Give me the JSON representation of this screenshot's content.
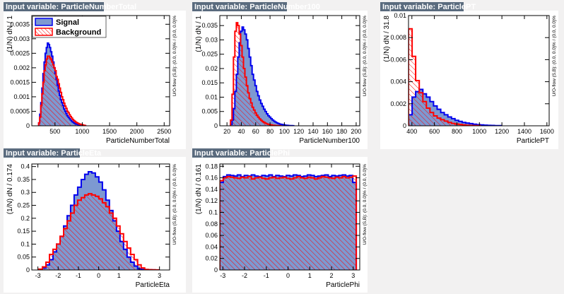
{
  "colors": {
    "background": "#f2f1f1",
    "frame": "#ffffff",
    "title_box": "#5a6b7e",
    "signal_fill": "#7d99d1",
    "signal_line": "#0000ee",
    "background_line": "#ff0000"
  },
  "legend": {
    "signal": "Signal",
    "background": "Background"
  },
  "overflow_label": "U/O-flow (S,B): (0.0, 0.0)% / (0.0, 0.0)%",
  "chart_data": [
    {
      "type": "histogram",
      "title": "Input variable: ParticleNumberTotal",
      "xlabel": "ParticleNumberTotal",
      "ylabel": "(1/N)  dN / 1",
      "xlim": [
        75,
        2600
      ],
      "ylim": [
        0,
        0.0038
      ],
      "xticks": [
        500,
        1000,
        1500,
        2000,
        2500
      ],
      "xtick_labels": [
        "500",
        "1000",
        "1500",
        "2000",
        "2500"
      ],
      "yticks": [
        0,
        0.0005,
        0.001,
        0.0015,
        0.002,
        0.0025,
        0.003,
        0.0035
      ],
      "ytick_labels": [
        "0",
        "0.0005",
        "0.001",
        "0.0015",
        "0.002",
        "0.0025",
        "0.003",
        "0.0035"
      ],
      "legend": "top-left",
      "bins_start": 200,
      "bin_width": 20,
      "series": [
        {
          "name": "Signal",
          "values": [
            0.0001,
            0.0004,
            0.0008,
            0.0013,
            0.0018,
            0.0022,
            0.0025,
            0.0027,
            0.00285,
            0.0028,
            0.0027,
            0.00255,
            0.0024,
            0.0022,
            0.002,
            0.0018,
            0.0016,
            0.0014,
            0.0012,
            0.00105,
            0.0009,
            0.0008,
            0.0007,
            0.00058,
            0.0005,
            0.00042,
            0.00035,
            0.0003,
            0.00025,
            0.0002,
            0.00016,
            0.00013,
            0.0001,
            8e-05,
            6e-05,
            5e-05,
            4e-05,
            3e-05,
            2e-05,
            1.5e-05,
            1e-05,
            1e-05,
            5e-06
          ]
        },
        {
          "name": "Background",
          "values": [
            0.0001,
            0.0003,
            0.0007,
            0.0011,
            0.0015,
            0.0019,
            0.0021,
            0.0023,
            0.0024,
            0.0024,
            0.00235,
            0.0023,
            0.0022,
            0.0021,
            0.002,
            0.0019,
            0.0017,
            0.0016,
            0.00145,
            0.0013,
            0.00115,
            0.001,
            0.0009,
            0.00078,
            0.00068,
            0.0006,
            0.0005,
            0.00045,
            0.00038,
            0.00032,
            0.00027,
            0.00022,
            0.00018,
            0.00015,
            0.00012,
            0.0001,
            8e-05,
            6e-05,
            5e-05,
            4e-05,
            3e-05,
            2e-05,
            1e-05
          ]
        }
      ]
    },
    {
      "type": "histogram",
      "title": "Input variable: ParticleNumber100",
      "xlabel": "ParticleNumber100",
      "ylabel": "(1/N)  dN / 1",
      "xlim": [
        10,
        205
      ],
      "ylim": [
        0,
        0.0385
      ],
      "xticks": [
        20,
        40,
        60,
        80,
        100,
        120,
        140,
        160,
        180,
        200
      ],
      "xtick_labels": [
        "20",
        "40",
        "60",
        "80",
        "100",
        "120",
        "140",
        "160",
        "180",
        "200"
      ],
      "yticks": [
        0,
        0.005,
        0.01,
        0.015,
        0.02,
        0.025,
        0.03,
        0.035
      ],
      "ytick_labels": [
        "0",
        "0.005",
        "0.01",
        "0.015",
        "0.02",
        "0.025",
        "0.03",
        "0.035"
      ],
      "bins_start": 25,
      "bin_width": 2,
      "series": [
        {
          "name": "Signal",
          "values": [
            0.0005,
            0.002,
            0.006,
            0.012,
            0.018,
            0.024,
            0.029,
            0.033,
            0.0345,
            0.0335,
            0.032,
            0.03,
            0.027,
            0.024,
            0.021,
            0.018,
            0.016,
            0.014,
            0.012,
            0.0105,
            0.009,
            0.0078,
            0.0068,
            0.0058,
            0.005,
            0.0042,
            0.0035,
            0.003,
            0.0025,
            0.002,
            0.0016,
            0.0013,
            0.001,
            0.0008,
            0.0006,
            0.0005,
            0.0004,
            0.0003,
            0.0002,
            0.00015,
            0.0001,
            8e-05,
            5e-05,
            3e-05
          ]
        },
        {
          "name": "Background",
          "values": [
            0.002,
            0.011,
            0.024,
            0.033,
            0.036,
            0.035,
            0.032,
            0.028,
            0.024,
            0.02,
            0.017,
            0.014,
            0.0115,
            0.0095,
            0.008,
            0.0065,
            0.0055,
            0.0045,
            0.0037,
            0.003,
            0.0024,
            0.0019,
            0.0015,
            0.0012,
            0.0009,
            0.0007,
            0.0005,
            0.0004,
            0.0003,
            0.0002,
            0.00015,
            0.0001,
            8e-05,
            5e-05,
            3e-05
          ]
        }
      ]
    },
    {
      "type": "histogram",
      "title": "Input variable: ParticlePT",
      "xlabel": "ParticlePT",
      "ylabel": "(1/N)  dN / 31.8",
      "xlim": [
        370,
        1620
      ],
      "ylim": [
        0,
        0.01
      ],
      "xticks": [
        400,
        600,
        800,
        1000,
        1200,
        1400,
        1600
      ],
      "xtick_labels": [
        "400",
        "600",
        "800",
        "1000",
        "1200",
        "1400",
        "1600"
      ],
      "yticks": [
        0,
        0.002,
        0.004,
        0.006,
        0.008,
        0.01
      ],
      "ytick_labels": [
        "0",
        "0.002",
        "0.004",
        "0.006",
        "0.008",
        "0.01"
      ],
      "bins_start": 370,
      "bin_width": 31.8,
      "series": [
        {
          "name": "Signal",
          "values": [
            0.001,
            0.0026,
            0.0031,
            0.0033,
            0.0029,
            0.0026,
            0.0022,
            0.0018,
            0.0015,
            0.0012,
            0.001,
            0.0008,
            0.00065,
            0.0005,
            0.0004,
            0.0003,
            0.00025,
            0.0002,
            0.00015,
            0.0001,
            8e-05,
            6e-05,
            4e-05,
            3e-05,
            2e-05,
            1e-05
          ]
        },
        {
          "name": "Background",
          "values": [
            0.0088,
            0.0063,
            0.0041,
            0.003,
            0.0022,
            0.0016,
            0.0012,
            0.0009,
            0.0007,
            0.00055,
            0.00042,
            0.0003,
            0.00022,
            0.00016,
            0.00012,
            8e-05,
            5e-05,
            3e-05,
            2e-05,
            1e-05
          ]
        }
      ]
    },
    {
      "type": "histogram",
      "title": "Input variable: ParticleEta",
      "xlabel": "ParticleEta",
      "ylabel": "(1/N)  dN / 0.174",
      "xlim": [
        -3.3,
        3.5
      ],
      "ylim": [
        0,
        0.41
      ],
      "xticks": [
        -3,
        -2,
        -1,
        0,
        1,
        2,
        3
      ],
      "xtick_labels": [
        "-3",
        "-2",
        "-1",
        "0",
        "1",
        "2",
        "3"
      ],
      "yticks": [
        0,
        0.05,
        0.1,
        0.15,
        0.2,
        0.25,
        0.3,
        0.35,
        0.4
      ],
      "ytick_labels": [
        "0",
        "0.05",
        "0.1",
        "0.15",
        "0.2",
        "0.25",
        "0.3",
        "0.35",
        "0.4"
      ],
      "bins_start": -2.95,
      "bin_width": 0.174,
      "series": [
        {
          "name": "Signal",
          "values": [
            0.002,
            0.008,
            0.02,
            0.04,
            0.07,
            0.1,
            0.13,
            0.17,
            0.21,
            0.25,
            0.29,
            0.32,
            0.35,
            0.37,
            0.38,
            0.375,
            0.36,
            0.34,
            0.31,
            0.27,
            0.23,
            0.19,
            0.15,
            0.11,
            0.08,
            0.05,
            0.03,
            0.015,
            0.005,
            0.002,
            0.001,
            0.0005,
            0.0002,
            0.0001
          ]
        },
        {
          "name": "Background",
          "values": [
            0.003,
            0.012,
            0.03,
            0.06,
            0.08,
            0.1,
            0.13,
            0.16,
            0.19,
            0.22,
            0.25,
            0.27,
            0.28,
            0.29,
            0.295,
            0.29,
            0.285,
            0.275,
            0.26,
            0.245,
            0.22,
            0.2,
            0.17,
            0.14,
            0.11,
            0.085,
            0.06,
            0.04,
            0.02,
            0.008,
            0.002,
            0.001,
            0.0005,
            0.0002
          ]
        }
      ]
    },
    {
      "type": "histogram",
      "title": "Input variable: ParticlePhi",
      "xlabel": "ParticlePhi",
      "ylabel": "(1/N)  dN / 0.161",
      "xlim": [
        -3.14,
        3.3
      ],
      "ylim": [
        0,
        0.184
      ],
      "xticks": [
        -3,
        -2,
        -1,
        0,
        1,
        2,
        3
      ],
      "xtick_labels": [
        "-3",
        "-2",
        "-1",
        "0",
        "1",
        "2",
        "3"
      ],
      "yticks": [
        0,
        0.02,
        0.04,
        0.06,
        0.08,
        0.1,
        0.12,
        0.14,
        0.16,
        0.18
      ],
      "ytick_labels": [
        "0",
        "0.02",
        "0.04",
        "0.06",
        "0.08",
        "0.1",
        "0.12",
        "0.14",
        "0.16",
        "0.18"
      ],
      "bins_start": -3.14,
      "bin_width": 0.161,
      "series": [
        {
          "name": "Signal",
          "values": [
            0.152,
            0.162,
            0.165,
            0.164,
            0.163,
            0.165,
            0.162,
            0.164,
            0.163,
            0.165,
            0.163,
            0.162,
            0.164,
            0.163,
            0.165,
            0.162,
            0.164,
            0.163,
            0.162,
            0.164,
            0.163,
            0.165,
            0.164,
            0.162,
            0.163,
            0.165,
            0.164,
            0.162,
            0.163,
            0.164,
            0.165,
            0.162,
            0.164,
            0.163,
            0.164,
            0.165,
            0.163,
            0.164,
            0.152
          ]
        },
        {
          "name": "Background",
          "values": [
            0.155,
            0.16,
            0.162,
            0.161,
            0.16,
            0.159,
            0.161,
            0.16,
            0.162,
            0.158,
            0.16,
            0.161,
            0.159,
            0.158,
            0.16,
            0.161,
            0.159,
            0.16,
            0.161,
            0.159,
            0.158,
            0.16,
            0.162,
            0.16,
            0.159,
            0.161,
            0.16,
            0.158,
            0.16,
            0.162,
            0.161,
            0.16,
            0.159,
            0.161,
            0.16,
            0.162,
            0.16,
            0.161,
            0.163
          ]
        }
      ]
    }
  ]
}
